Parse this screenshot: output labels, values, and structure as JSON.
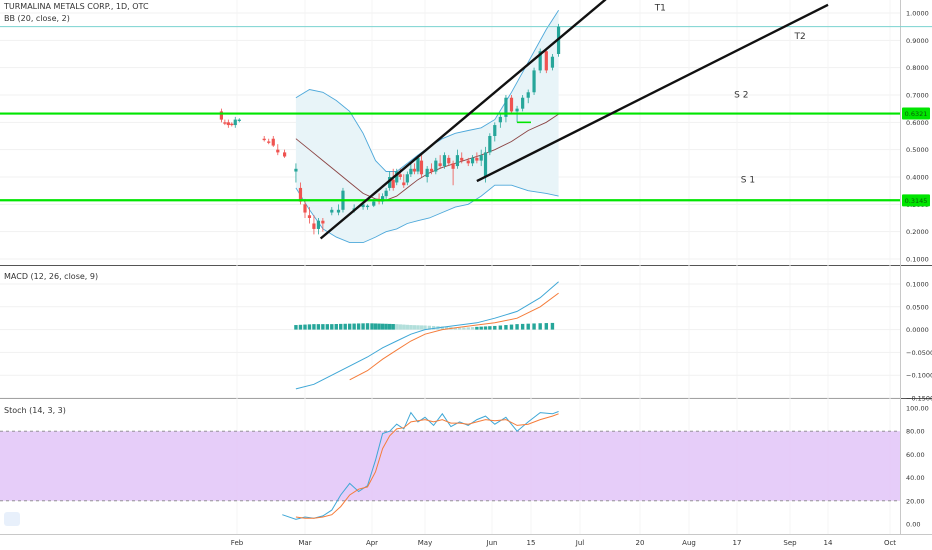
{
  "panel_titles": {
    "main": "TURMALINA METALS CORP., 1D, OTC",
    "bb": "BB (20, close, 2)",
    "macd": "MACD (12, 26, close, 9)",
    "stoch": "Stoch (14, 3, 3)"
  },
  "colors": {
    "up": "#26a69a",
    "down": "#ef5350",
    "support": "#00e500",
    "bb_band": "#4da8da",
    "bb_fill": "#e8f4f8",
    "bb_mid": "#8b4444",
    "macd_line": "#3fa7d6",
    "signal_line": "#f57c3a",
    "hist_pos": "#26a69a",
    "hist_neg": "#b2dfdb",
    "stoch_k": "#3fa7d6",
    "stoch_d": "#f57c3a",
    "stoch_zone": "#e2c4f8"
  },
  "chart_data": [
    {
      "id": "price",
      "type": "candlestick",
      "y_ticks": [
        "1.0000",
        "0.9000",
        "0.8000",
        "0.7000",
        "0.6000",
        "0.5000",
        "0.4000",
        "0.3000",
        "0.2000",
        "0.1000"
      ],
      "ylim": [
        0.08,
        1.05
      ],
      "x_ticks": [
        "Feb",
        "Mar",
        "Apr",
        "May",
        "Jun",
        "15",
        "Jul",
        "20",
        "Aug",
        "17",
        "Sep",
        "14",
        "Oct"
      ],
      "x_tick_days": [
        0,
        30,
        60,
        90,
        121,
        135,
        151,
        172,
        182,
        199,
        213,
        230,
        243
      ],
      "price_badges": [
        {
          "value": 0.6321,
          "text": "0.6321"
        },
        {
          "value": 0.3145,
          "text": "0.3145"
        }
      ],
      "candles": [
        {
          "d": -9,
          "o": 0.64,
          "h": 0.65,
          "l": 0.6,
          "c": 0.61
        },
        {
          "d": -7,
          "o": 0.6,
          "h": 0.61,
          "l": 0.59,
          "c": 0.595
        },
        {
          "d": -5,
          "o": 0.6,
          "h": 0.61,
          "l": 0.58,
          "c": 0.59
        },
        {
          "d": -3,
          "o": 0.595,
          "h": 0.6,
          "l": 0.585,
          "c": 0.59
        },
        {
          "d": -1,
          "o": 0.59,
          "h": 0.62,
          "l": 0.58,
          "c": 0.61
        },
        {
          "d": 1,
          "o": 0.605,
          "h": 0.615,
          "l": 0.6,
          "c": 0.61
        },
        {
          "d": 12,
          "o": 0.54,
          "h": 0.55,
          "l": 0.53,
          "c": 0.535
        },
        {
          "d": 14,
          "o": 0.53,
          "h": 0.54,
          "l": 0.52,
          "c": 0.525
        },
        {
          "d": 16,
          "o": 0.54,
          "h": 0.55,
          "l": 0.51,
          "c": 0.515
        },
        {
          "d": 18,
          "o": 0.5,
          "h": 0.52,
          "l": 0.48,
          "c": 0.49
        },
        {
          "d": 21,
          "o": 0.49,
          "h": 0.5,
          "l": 0.47,
          "c": 0.475
        },
        {
          "d": 26,
          "o": 0.42,
          "h": 0.45,
          "l": 0.38,
          "c": 0.43
        },
        {
          "d": 28,
          "o": 0.36,
          "h": 0.38,
          "l": 0.3,
          "c": 0.31
        },
        {
          "d": 30,
          "o": 0.3,
          "h": 0.32,
          "l": 0.25,
          "c": 0.27
        },
        {
          "d": 32,
          "o": 0.26,
          "h": 0.29,
          "l": 0.23,
          "c": 0.25
        },
        {
          "d": 34,
          "o": 0.23,
          "h": 0.26,
          "l": 0.19,
          "c": 0.21
        },
        {
          "d": 36,
          "o": 0.21,
          "h": 0.25,
          "l": 0.19,
          "c": 0.24
        },
        {
          "d": 38,
          "o": 0.24,
          "h": 0.25,
          "l": 0.2,
          "c": 0.23
        },
        {
          "d": 42,
          "o": 0.27,
          "h": 0.29,
          "l": 0.26,
          "c": 0.28
        },
        {
          "d": 45,
          "o": 0.27,
          "h": 0.3,
          "l": 0.26,
          "c": 0.28
        },
        {
          "d": 47,
          "o": 0.28,
          "h": 0.36,
          "l": 0.27,
          "c": 0.35
        },
        {
          "d": 52,
          "o": 0.28,
          "h": 0.3,
          "l": 0.27,
          "c": 0.285
        },
        {
          "d": 56,
          "o": 0.29,
          "h": 0.31,
          "l": 0.28,
          "c": 0.3
        },
        {
          "d": 58,
          "o": 0.29,
          "h": 0.3,
          "l": 0.28,
          "c": 0.295
        },
        {
          "d": 61,
          "o": 0.295,
          "h": 0.32,
          "l": 0.29,
          "c": 0.31
        },
        {
          "d": 64,
          "o": 0.32,
          "h": 0.34,
          "l": 0.3,
          "c": 0.31
        },
        {
          "d": 66,
          "o": 0.31,
          "h": 0.34,
          "l": 0.3,
          "c": 0.33
        },
        {
          "d": 68,
          "o": 0.33,
          "h": 0.36,
          "l": 0.32,
          "c": 0.35
        },
        {
          "d": 70,
          "o": 0.36,
          "h": 0.42,
          "l": 0.35,
          "c": 0.4
        },
        {
          "d": 72,
          "o": 0.39,
          "h": 0.43,
          "l": 0.35,
          "c": 0.36
        },
        {
          "d": 74,
          "o": 0.38,
          "h": 0.43,
          "l": 0.37,
          "c": 0.42
        },
        {
          "d": 76,
          "o": 0.41,
          "h": 0.43,
          "l": 0.39,
          "c": 0.4
        },
        {
          "d": 78,
          "o": 0.38,
          "h": 0.41,
          "l": 0.36,
          "c": 0.37
        },
        {
          "d": 80,
          "o": 0.38,
          "h": 0.42,
          "l": 0.37,
          "c": 0.41
        },
        {
          "d": 82,
          "o": 0.41,
          "h": 0.45,
          "l": 0.4,
          "c": 0.43
        },
        {
          "d": 84,
          "o": 0.43,
          "h": 0.45,
          "l": 0.41,
          "c": 0.42
        },
        {
          "d": 86,
          "o": 0.42,
          "h": 0.48,
          "l": 0.41,
          "c": 0.47
        },
        {
          "d": 88,
          "o": 0.46,
          "h": 0.48,
          "l": 0.4,
          "c": 0.41
        },
        {
          "d": 91,
          "o": 0.4,
          "h": 0.44,
          "l": 0.38,
          "c": 0.43
        },
        {
          "d": 93,
          "o": 0.43,
          "h": 0.45,
          "l": 0.41,
          "c": 0.42
        },
        {
          "d": 95,
          "o": 0.42,
          "h": 0.47,
          "l": 0.41,
          "c": 0.46
        },
        {
          "d": 97,
          "o": 0.45,
          "h": 0.48,
          "l": 0.43,
          "c": 0.44
        },
        {
          "d": 99,
          "o": 0.44,
          "h": 0.49,
          "l": 0.43,
          "c": 0.48
        },
        {
          "d": 101,
          "o": 0.47,
          "h": 0.48,
          "l": 0.44,
          "c": 0.45
        },
        {
          "d": 103,
          "o": 0.45,
          "h": 0.46,
          "l": 0.37,
          "c": 0.43
        },
        {
          "d": 105,
          "o": 0.44,
          "h": 0.5,
          "l": 0.43,
          "c": 0.48
        },
        {
          "d": 107,
          "o": 0.47,
          "h": 0.49,
          "l": 0.45,
          "c": 0.46
        },
        {
          "d": 110,
          "o": 0.46,
          "h": 0.47,
          "l": 0.44,
          "c": 0.45
        },
        {
          "d": 112,
          "o": 0.45,
          "h": 0.48,
          "l": 0.44,
          "c": 0.47
        },
        {
          "d": 114,
          "o": 0.47,
          "h": 0.49,
          "l": 0.45,
          "c": 0.46
        },
        {
          "d": 116,
          "o": 0.46,
          "h": 0.5,
          "l": 0.44,
          "c": 0.48
        },
        {
          "d": 118,
          "o": 0.4,
          "h": 0.51,
          "l": 0.38,
          "c": 0.49
        },
        {
          "d": 120,
          "o": 0.49,
          "h": 0.56,
          "l": 0.48,
          "c": 0.55
        },
        {
          "d": 122,
          "o": 0.55,
          "h": 0.6,
          "l": 0.53,
          "c": 0.59
        },
        {
          "d": 124,
          "o": 0.6,
          "h": 0.63,
          "l": 0.58,
          "c": 0.62
        },
        {
          "d": 126,
          "o": 0.62,
          "h": 0.7,
          "l": 0.6,
          "c": 0.69
        },
        {
          "d": 128,
          "o": 0.69,
          "h": 0.7,
          "l": 0.63,
          "c": 0.64
        },
        {
          "d": 130,
          "o": 0.64,
          "h": 0.66,
          "l": 0.6,
          "c": 0.65
        },
        {
          "d": 132,
          "o": 0.65,
          "h": 0.7,
          "l": 0.64,
          "c": 0.69
        },
        {
          "d": 134,
          "o": 0.69,
          "h": 0.72,
          "l": 0.67,
          "c": 0.71
        },
        {
          "d": 136,
          "o": 0.71,
          "h": 0.8,
          "l": 0.7,
          "c": 0.79
        },
        {
          "d": 138,
          "o": 0.79,
          "h": 0.87,
          "l": 0.78,
          "c": 0.86
        },
        {
          "d": 140,
          "o": 0.86,
          "h": 0.87,
          "l": 0.78,
          "c": 0.79
        },
        {
          "d": 142,
          "o": 0.8,
          "h": 0.85,
          "l": 0.79,
          "c": 0.84
        },
        {
          "d": 144,
          "o": 0.85,
          "h": 0.96,
          "l": 0.84,
          "c": 0.95
        }
      ],
      "bollinger": {
        "days": [
          26,
          32,
          38,
          44,
          50,
          56,
          62,
          68,
          74,
          80,
          86,
          92,
          98,
          104,
          110,
          116,
          122,
          128,
          134,
          140,
          144
        ],
        "upper": [
          0.69,
          0.72,
          0.71,
          0.68,
          0.64,
          0.56,
          0.46,
          0.42,
          0.42,
          0.45,
          0.48,
          0.51,
          0.54,
          0.56,
          0.57,
          0.58,
          0.61,
          0.71,
          0.82,
          0.94,
          1.01
        ],
        "middle": [
          0.54,
          0.5,
          0.46,
          0.42,
          0.38,
          0.34,
          0.32,
          0.315,
          0.33,
          0.36,
          0.39,
          0.415,
          0.435,
          0.45,
          0.465,
          0.48,
          0.5,
          0.53,
          0.57,
          0.6,
          0.63
        ],
        "lower": [
          0.36,
          0.28,
          0.21,
          0.18,
          0.16,
          0.16,
          0.18,
          0.2,
          0.21,
          0.23,
          0.24,
          0.25,
          0.27,
          0.29,
          0.3,
          0.33,
          0.37,
          0.37,
          0.35,
          0.34,
          0.33
        ]
      },
      "lines": [
        {
          "label": "T1",
          "from": [
            37,
            0.175
          ],
          "to": [
            160,
            1.05
          ]
        },
        {
          "label": "T2",
          "from": [
            114,
            0.385
          ],
          "to": [
            230,
            1.03
          ]
        },
        {
          "label": "",
          "from": [
            130,
            0.6
          ],
          "to": [
            135,
            0.6
          ]
        }
      ],
      "levels": [
        {
          "label": "S 2",
          "value": 0.632
        },
        {
          "label": "S 1",
          "value": 0.315
        }
      ],
      "top_line": 0.95,
      "annotations": [
        {
          "text": "T1",
          "day": 175,
          "value": 1.01
        },
        {
          "text": "T2",
          "day": 215,
          "value": 0.905
        },
        {
          "text": "S 2",
          "day": 198,
          "value": 0.69
        },
        {
          "text": "S 1",
          "day": 200,
          "value": 0.38
        }
      ]
    },
    {
      "id": "macd",
      "type": "line+bar",
      "y_ticks": [
        "0.1000",
        "0.0500",
        "0.0000",
        "−0.0500",
        "−0.1000",
        "−0.1500"
      ],
      "ylim": [
        -0.15,
        0.12
      ],
      "days": [
        26,
        34,
        42,
        50,
        58,
        66,
        74,
        82,
        90,
        98,
        106,
        114,
        122,
        130,
        138,
        144
      ],
      "macd": [
        -0.13,
        -0.12,
        -0.1,
        -0.08,
        -0.06,
        -0.04,
        -0.025,
        -0.01,
        0.0,
        0.005,
        0.01,
        0.015,
        0.025,
        0.04,
        0.07,
        0.105
      ],
      "signal": [
        null,
        null,
        null,
        -0.11,
        -0.09,
        -0.065,
        -0.045,
        -0.025,
        -0.01,
        0.0,
        0.005,
        0.01,
        0.015,
        0.025,
        0.05,
        0.08
      ],
      "histogram": [
        0.01,
        0.012,
        0.012,
        0.013,
        0.014,
        0.013,
        0.012,
        0.01,
        0.009,
        0.007,
        0.004,
        0.006,
        0.008,
        0.012,
        0.014,
        0.015
      ]
    },
    {
      "id": "stoch",
      "type": "line",
      "y_ticks": [
        "100.00",
        "80.00",
        "60.00",
        "40.00",
        "20.00",
        "0.00"
      ],
      "ylim": [
        -5,
        103
      ],
      "band": [
        20,
        80
      ],
      "days": [
        20,
        26,
        30,
        34,
        38,
        42,
        46,
        50,
        54,
        58,
        62,
        66,
        70,
        74,
        78,
        82,
        86,
        90,
        94,
        98,
        102,
        106,
        110,
        114,
        118,
        122,
        126,
        130,
        134,
        138,
        142,
        144
      ],
      "k": [
        8,
        4,
        6,
        5,
        7,
        12,
        25,
        35,
        28,
        33,
        55,
        78,
        80,
        86,
        82,
        96,
        88,
        92,
        85,
        95,
        84,
        88,
        85,
        90,
        93,
        86,
        92,
        80,
        88,
        96,
        95,
        97
      ],
      "d": [
        null,
        6,
        5,
        5,
        6,
        8,
        15,
        25,
        30,
        32,
        45,
        65,
        76,
        82,
        83,
        88,
        89,
        90,
        88,
        90,
        87,
        87,
        86,
        88,
        90,
        89,
        90,
        85,
        86,
        90,
        93,
        95
      ]
    }
  ]
}
